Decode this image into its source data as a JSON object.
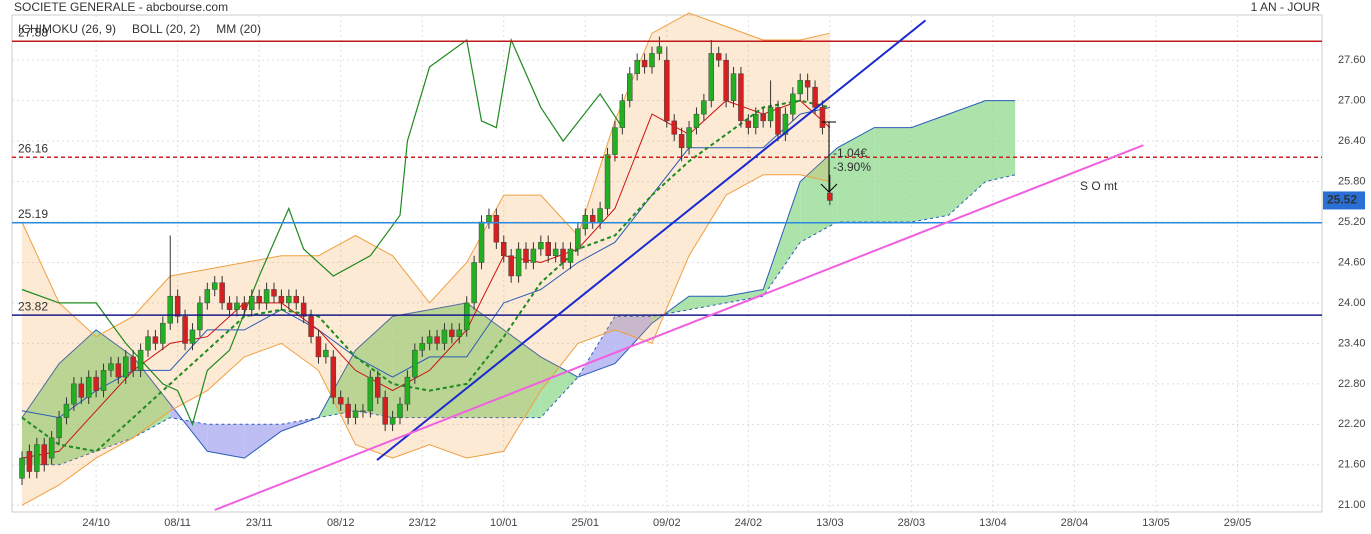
{
  "chart_data": {
    "type": "candlestick",
    "title": "SOCIETE GENERALE - abcbourse.com",
    "period": "1 AN - JOUR",
    "legend": [
      {
        "name": "ICHIMOKU (26, 9)",
        "color": "#2a5cb8"
      },
      {
        "name": "BOLL (20, 2)",
        "color": "#f0a040"
      },
      {
        "name": "MM (20)",
        "color": "#1f8a1f"
      }
    ],
    "up_color": "#22b022",
    "down_color": "#d42020",
    "x": [
      0,
      1,
      2,
      3,
      4,
      5,
      6,
      7,
      8,
      9,
      10,
      11,
      12,
      13,
      14,
      15,
      16,
      17,
      18,
      19,
      20,
      21,
      22,
      23,
      24,
      25,
      26,
      27,
      28,
      29,
      30,
      31,
      32,
      33,
      34,
      35,
      36,
      37,
      38,
      39,
      40,
      41,
      42,
      43,
      44,
      45,
      46,
      47,
      48,
      49,
      50,
      51,
      52,
      53,
      54,
      55,
      56,
      57,
      58,
      59,
      60,
      61,
      62,
      63,
      64,
      65,
      66,
      67,
      68,
      69,
      70,
      71,
      72,
      73,
      74,
      75,
      76,
      77,
      78,
      79,
      80,
      81,
      82,
      83,
      84,
      85,
      86,
      87,
      88,
      89,
      90,
      91,
      92,
      93,
      94,
      95,
      96,
      97,
      98,
      99,
      100,
      101,
      102,
      103,
      104,
      105,
      106,
      107,
      108,
      109
    ],
    "open": [
      21.4,
      21.8,
      21.5,
      21.9,
      21.7,
      22.0,
      22.3,
      22.5,
      22.8,
      22.6,
      22.9,
      22.7,
      23.0,
      23.1,
      22.9,
      23.2,
      23.0,
      23.3,
      23.5,
      23.4,
      23.7,
      24.1,
      23.8,
      23.4,
      23.6,
      24.0,
      24.2,
      24.3,
      24.0,
      23.9,
      24.0,
      23.9,
      24.1,
      24.0,
      24.2,
      24.1,
      24.0,
      24.1,
      24.0,
      23.8,
      23.5,
      23.2,
      23.2,
      22.6,
      22.5,
      22.3,
      22.4,
      22.4,
      22.9,
      22.6,
      22.2,
      22.3,
      22.5,
      22.9,
      23.3,
      23.4,
      23.5,
      23.4,
      23.6,
      23.5,
      23.6,
      24.0,
      24.6,
      25.2,
      25.3,
      24.9,
      24.7,
      24.4,
      24.8,
      24.6,
      24.8,
      24.9,
      24.7,
      24.8,
      24.6,
      24.8,
      25.1,
      25.3,
      25.2,
      25.4,
      26.2,
      26.6,
      27.0,
      27.4,
      27.6,
      27.5,
      27.7,
      27.6,
      26.7,
      26.5,
      26.3,
      26.6,
      26.8,
      27.0,
      27.7,
      27.6,
      27.0,
      27.4,
      26.7,
      26.6,
      26.8,
      26.7,
      26.9,
      26.5,
      26.8,
      27.1,
      27.3,
      27.2,
      26.9,
      25.63
    ],
    "high": [
      21.8,
      21.9,
      22.0,
      22.0,
      22.1,
      22.4,
      22.6,
      22.9,
      22.9,
      23.0,
      23.0,
      23.1,
      23.2,
      23.2,
      23.3,
      23.3,
      23.4,
      23.6,
      23.6,
      23.8,
      25.0,
      24.2,
      23.9,
      23.7,
      24.1,
      24.3,
      24.4,
      24.4,
      24.1,
      24.1,
      24.1,
      24.2,
      24.2,
      24.3,
      24.3,
      24.2,
      24.2,
      24.2,
      24.1,
      23.9,
      23.6,
      23.4,
      23.3,
      22.7,
      22.6,
      22.5,
      22.5,
      23.0,
      23.0,
      22.7,
      22.4,
      22.6,
      23.0,
      23.4,
      23.5,
      23.6,
      23.6,
      23.7,
      23.7,
      23.7,
      24.1,
      24.7,
      25.3,
      25.4,
      25.4,
      25.0,
      24.8,
      24.9,
      24.9,
      24.9,
      25.0,
      25.0,
      24.9,
      24.9,
      24.9,
      25.2,
      25.4,
      25.4,
      25.5,
      26.3,
      26.7,
      27.1,
      27.5,
      27.7,
      27.7,
      27.8,
      27.95,
      27.8,
      26.8,
      26.6,
      26.7,
      26.9,
      27.1,
      27.9,
      27.8,
      27.7,
      27.5,
      27.5,
      26.8,
      26.9,
      26.9,
      27.3,
      27.0,
      26.9,
      27.2,
      27.4,
      27.4,
      27.3,
      27.0,
      25.9
    ],
    "low": [
      21.3,
      21.4,
      21.4,
      21.5,
      21.6,
      21.9,
      22.2,
      22.4,
      22.5,
      22.5,
      22.6,
      22.6,
      22.9,
      22.8,
      22.8,
      22.9,
      22.9,
      23.2,
      23.3,
      23.3,
      23.6,
      23.7,
      23.3,
      23.3,
      23.5,
      23.9,
      24.1,
      23.9,
      23.8,
      23.8,
      23.8,
      23.8,
      23.9,
      23.9,
      24.0,
      23.9,
      23.9,
      23.9,
      23.7,
      23.4,
      23.1,
      23.1,
      22.5,
      22.4,
      22.2,
      22.2,
      22.3,
      22.3,
      22.5,
      22.1,
      22.1,
      22.2,
      22.4,
      22.8,
      23.2,
      23.3,
      23.3,
      23.3,
      23.4,
      23.4,
      23.5,
      23.9,
      24.5,
      25.1,
      24.8,
      24.6,
      24.3,
      24.3,
      24.5,
      24.5,
      24.7,
      24.6,
      24.6,
      24.5,
      24.5,
      24.7,
      25.0,
      25.1,
      25.1,
      25.3,
      26.1,
      26.5,
      26.9,
      27.3,
      27.4,
      27.4,
      27.6,
      26.6,
      26.4,
      26.1,
      26.2,
      26.5,
      26.7,
      26.9,
      27.5,
      26.9,
      26.9,
      26.6,
      26.5,
      26.5,
      26.6,
      26.6,
      26.4,
      26.4,
      26.7,
      27.0,
      27.0,
      26.8,
      26.5,
      25.45
    ],
    "close": [
      21.7,
      21.5,
      21.9,
      21.6,
      22.0,
      22.3,
      22.5,
      22.8,
      22.6,
      22.9,
      22.7,
      23.0,
      23.1,
      22.9,
      23.2,
      23.0,
      23.3,
      23.5,
      23.4,
      23.7,
      24.1,
      23.8,
      23.4,
      23.6,
      24.0,
      24.2,
      24.3,
      24.0,
      23.9,
      24.0,
      23.9,
      24.1,
      24.0,
      24.2,
      24.1,
      24.0,
      24.1,
      24.0,
      23.8,
      23.5,
      23.2,
      23.3,
      22.6,
      22.5,
      22.3,
      22.4,
      22.4,
      22.9,
      22.6,
      22.2,
      22.3,
      22.5,
      22.9,
      23.3,
      23.4,
      23.5,
      23.4,
      23.6,
      23.5,
      23.6,
      24.0,
      24.6,
      25.2,
      25.3,
      24.9,
      24.7,
      24.4,
      24.8,
      24.6,
      24.8,
      24.9,
      24.7,
      24.8,
      24.6,
      24.8,
      25.1,
      25.3,
      25.2,
      25.4,
      26.2,
      26.6,
      27.0,
      27.4,
      27.6,
      27.5,
      27.7,
      27.8,
      26.7,
      26.5,
      26.3,
      26.6,
      26.8,
      27.0,
      27.7,
      27.6,
      27.0,
      27.4,
      26.7,
      26.6,
      26.8,
      26.7,
      26.9,
      26.5,
      26.8,
      27.1,
      27.3,
      27.2,
      26.9,
      26.6,
      25.52
    ],
    "xlim": [
      -1.35,
      175.4
    ],
    "xticks": [
      {
        "value": 10,
        "label": "24/10"
      },
      {
        "value": 21,
        "label": "08/11"
      },
      {
        "value": 32,
        "label": "23/11"
      },
      {
        "value": 43,
        "label": "08/12"
      },
      {
        "value": 54,
        "label": "23/12"
      },
      {
        "value": 65,
        "label": "10/01"
      },
      {
        "value": 76,
        "label": "25/01"
      },
      {
        "value": 87,
        "label": "09/02"
      },
      {
        "value": 98,
        "label": "24/02"
      },
      {
        "value": 109,
        "label": "13/03"
      },
      {
        "value": 120,
        "label": "28/03"
      },
      {
        "value": 131,
        "label": "13/04"
      },
      {
        "value": 142,
        "label": "28/04"
      },
      {
        "value": 153,
        "label": "13/05"
      },
      {
        "value": 164,
        "label": "29/05"
      }
    ],
    "ylim": [
      20.9,
      28.27
    ],
    "yticks": [
      {
        "value": 21.0,
        "label": "21.00"
      },
      {
        "value": 21.6,
        "label": "21.60"
      },
      {
        "value": 22.2,
        "label": "22.20"
      },
      {
        "value": 22.8,
        "label": "22.80"
      },
      {
        "value": 23.4,
        "label": "23.40"
      },
      {
        "value": 24.0,
        "label": "24.00"
      },
      {
        "value": 24.6,
        "label": "24.60"
      },
      {
        "value": 25.2,
        "label": "25.20"
      },
      {
        "value": 25.8,
        "label": "25.80"
      },
      {
        "value": 26.4,
        "label": "26.40"
      },
      {
        "value": 27.0,
        "label": "27.00"
      },
      {
        "value": 27.6,
        "label": "27.60"
      }
    ],
    "grid": true,
    "last": {
      "value": 25.52,
      "label": "25.52",
      "color": "#2a6fd6"
    },
    "indicators": {
      "x": [
        0,
        5,
        10,
        15,
        20,
        25,
        30,
        35,
        40,
        45,
        50,
        55,
        60,
        65,
        70,
        75,
        80,
        85,
        90,
        95,
        100,
        105,
        109
      ],
      "bollinger_upper": [
        25.2,
        24.0,
        23.5,
        23.8,
        24.4,
        24.5,
        24.6,
        24.7,
        24.7,
        25.0,
        24.7,
        24.0,
        24.6,
        25.6,
        25.6,
        25.0,
        26.7,
        28.0,
        28.3,
        28.1,
        27.9,
        27.9,
        28.0
      ],
      "bollinger_lower": [
        21.0,
        21.3,
        21.7,
        22.0,
        22.4,
        22.7,
        23.2,
        23.4,
        23.0,
        21.9,
        21.7,
        21.9,
        21.7,
        21.8,
        22.7,
        23.4,
        23.6,
        23.4,
        24.7,
        25.6,
        25.9,
        25.9,
        25.8
      ],
      "bollinger_color": "#f0a040",
      "mm20": [
        22.3,
        21.9,
        21.8,
        22.3,
        22.8,
        23.3,
        23.8,
        23.9,
        23.8,
        23.2,
        22.8,
        22.7,
        22.8,
        23.5,
        24.3,
        24.8,
        25.0,
        25.6,
        26.1,
        26.5,
        26.9,
        27.0,
        26.9
      ],
      "mm20_color": "#1f8a1f",
      "tenkan": [
        21.7,
        21.8,
        22.4,
        23.0,
        23.4,
        23.5,
        24.0,
        24.0,
        23.6,
        23.0,
        22.7,
        23.0,
        23.6,
        24.7,
        24.6,
        24.8,
        25.4,
        26.8,
        26.5,
        27.0,
        26.8,
        27.0,
        26.6
      ],
      "tenkan_color": "#cc1010",
      "kijun": [
        22.4,
        22.3,
        22.7,
        23.0,
        23.0,
        23.6,
        23.6,
        23.9,
        23.6,
        23.2,
        22.9,
        23.2,
        23.2,
        24.0,
        24.2,
        24.6,
        24.9,
        25.6,
        26.3,
        26.3,
        26.3,
        26.8,
        26.9
      ],
      "kijun_color": "#2a5cb8"
    },
    "chikou": {
      "x": [
        0,
        5,
        10,
        14,
        19,
        21,
        23,
        25,
        28,
        32,
        36,
        38,
        42,
        47,
        51,
        52,
        55,
        60,
        62,
        64,
        66,
        70,
        73,
        78,
        81
      ],
      "values": [
        24.2,
        24.0,
        24.0,
        23.4,
        22.8,
        22.7,
        22.2,
        23.0,
        23.3,
        24.4,
        25.4,
        24.8,
        24.4,
        24.7,
        25.3,
        26.4,
        27.5,
        27.9,
        26.7,
        26.6,
        27.9,
        26.9,
        26.4,
        27.1,
        26.6
      ],
      "color": "#1f8a1f"
    },
    "cloud": {
      "x": [
        0,
        5,
        10,
        15,
        20,
        25,
        30,
        35,
        40,
        45,
        50,
        55,
        60,
        65,
        70,
        75,
        80,
        85,
        90,
        95,
        100,
        105,
        110,
        115,
        120,
        125,
        130,
        134
      ],
      "span_a": [
        22.3,
        23.1,
        23.6,
        23.2,
        22.5,
        21.8,
        21.7,
        22.1,
        22.3,
        23.3,
        23.8,
        23.9,
        24.0,
        23.6,
        23.2,
        22.9,
        23.1,
        23.7,
        24.1,
        24.1,
        24.2,
        25.8,
        26.3,
        26.6,
        26.6,
        26.8,
        27.0,
        27.0
      ],
      "span_b": [
        21.6,
        21.6,
        21.8,
        22.0,
        22.3,
        22.2,
        22.2,
        22.2,
        22.3,
        22.4,
        22.3,
        22.3,
        22.3,
        22.3,
        22.3,
        22.9,
        23.8,
        23.8,
        23.9,
        24.0,
        24.1,
        24.9,
        25.2,
        25.2,
        25.2,
        25.3,
        25.8,
        25.9
      ],
      "up_color": "#8fd98f",
      "down_color": "#a8a8f0",
      "line_color": "#2a5cb8"
    },
    "levels": [
      {
        "value": 27.88,
        "label": 27.88,
        "color": "#c01818",
        "dashed": false
      },
      {
        "value": 26.16,
        "label": 26.16,
        "color": "#d02020",
        "dashed": true
      },
      {
        "value": 25.19,
        "label": 25.19,
        "color": "#2a8ae0",
        "dashed": false
      },
      {
        "value": 23.82,
        "label": 23.82,
        "color": "#1a1a8a",
        "dashed": false
      }
    ],
    "trendlines": [
      {
        "x": [
          47.9,
          121.9
        ],
        "y": [
          21.67,
          28.19
        ],
        "color": "#1a2ad0"
      },
      {
        "x": [
          26.0,
          151.3
        ],
        "y": [
          20.93,
          26.34
        ],
        "color": "#f060e0"
      }
    ],
    "annotations": [
      "-1.04€",
      "-3.90%",
      "S O mt"
    ]
  }
}
